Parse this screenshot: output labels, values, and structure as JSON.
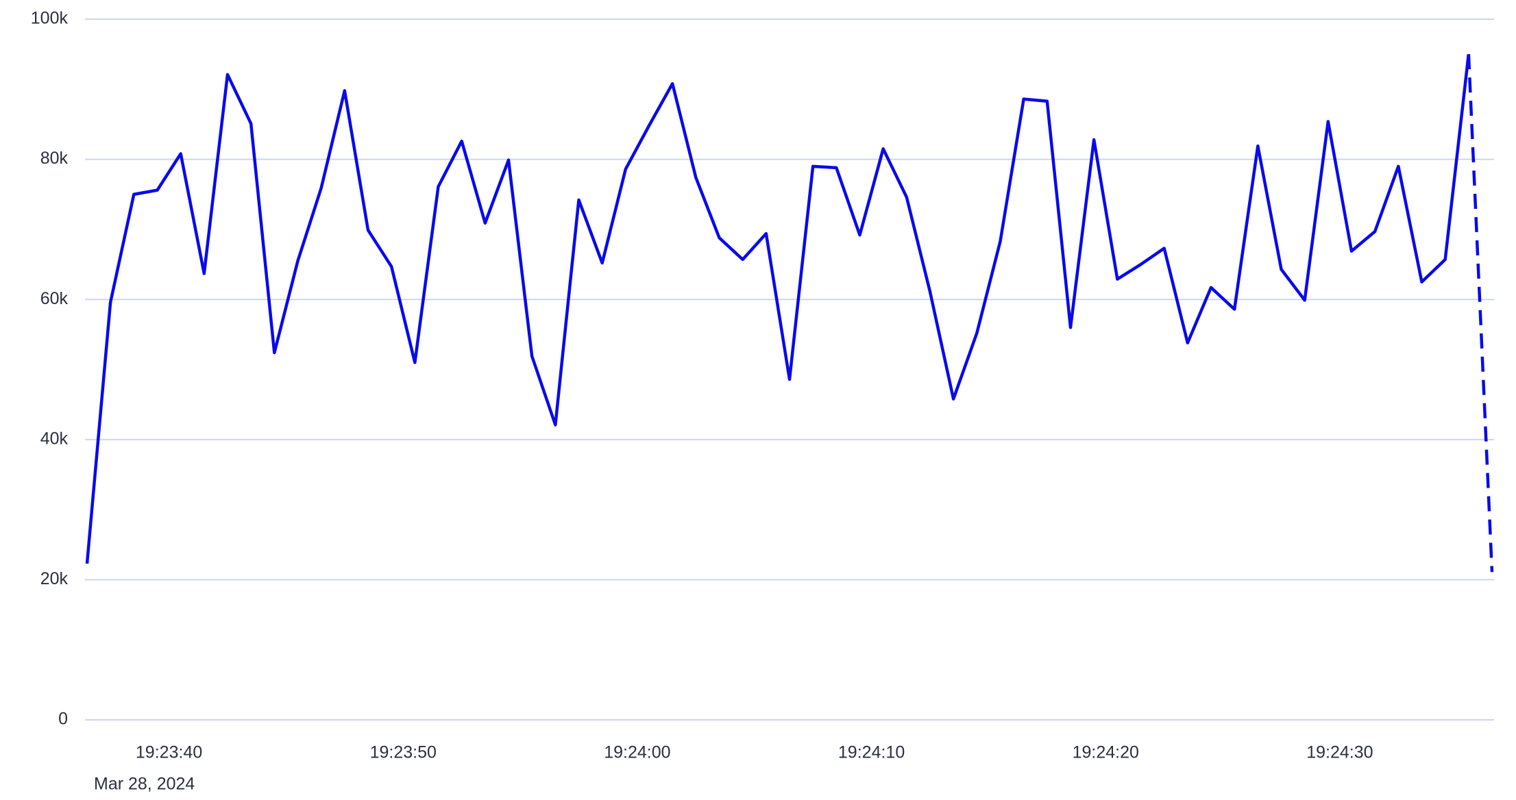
{
  "chart_data": {
    "type": "line",
    "date_label": "Mar 28, 2024",
    "x": [
      -3.5,
      -2.5,
      -1.5,
      -0.5,
      0.5,
      1.5,
      2.5,
      3.5,
      4.5,
      5.5,
      6.5,
      7.5,
      8.5,
      9.5,
      10.5,
      11.5,
      12.5,
      13.5,
      14.5,
      15.5,
      16.5,
      17.5,
      18.5,
      19.5,
      20.5,
      21.5,
      22.5,
      23.5,
      24.5,
      25.5,
      26.5,
      27.5,
      28.5,
      29.5,
      30.5,
      31.5,
      32.5,
      33.5,
      34.5,
      35.5,
      36.5,
      37.5,
      38.5,
      39.5,
      40.5,
      41.5,
      42.5,
      43.5,
      44.5,
      45.5,
      46.5,
      47.5,
      48.5,
      49.5,
      50.5,
      51.5,
      52.5,
      53.5,
      54.5,
      55.5,
      56.5
    ],
    "series": [
      {
        "color": "#0a0aeb",
        "dash_last_segment": true,
        "values": [
          22300,
          59600,
          75000,
          75600,
          80800,
          63700,
          92100,
          85100,
          52400,
          65500,
          75900,
          89800,
          69900,
          64700,
          51000,
          76100,
          82600,
          70900,
          79900,
          51900,
          42100,
          74200,
          65200,
          78600,
          84800,
          90800,
          77400,
          68800,
          65700,
          69400,
          48600,
          79000,
          78800,
          69200,
          81500,
          74600,
          61100,
          45800,
          55200,
          68300,
          88600,
          88300,
          56000,
          82800,
          62900,
          65000,
          67300,
          53800,
          61700,
          58600,
          81900,
          64300,
          59900,
          85400,
          66900,
          69700,
          79000,
          62500,
          65700,
          95000,
          21100
        ]
      }
    ],
    "xlim": [
      -3.5,
      56.5
    ],
    "xticks": [
      {
        "value": 0,
        "label": "19:23:40"
      },
      {
        "value": 10,
        "label": "19:23:50"
      },
      {
        "value": 20,
        "label": "19:24:00"
      },
      {
        "value": 30,
        "label": "19:24:10"
      },
      {
        "value": 40,
        "label": "19:24:20"
      },
      {
        "value": 50,
        "label": "19:24:30"
      }
    ],
    "ylim": [
      0,
      100000
    ],
    "yticks": [
      0,
      {
        "value": 20000,
        "label": "20k"
      },
      {
        "value": 40000,
        "label": "40k"
      },
      {
        "value": 60000,
        "label": "60k"
      },
      {
        "value": 80000,
        "label": "80k"
      },
      {
        "value": 100000,
        "label": "100k"
      }
    ],
    "grid": true
  }
}
